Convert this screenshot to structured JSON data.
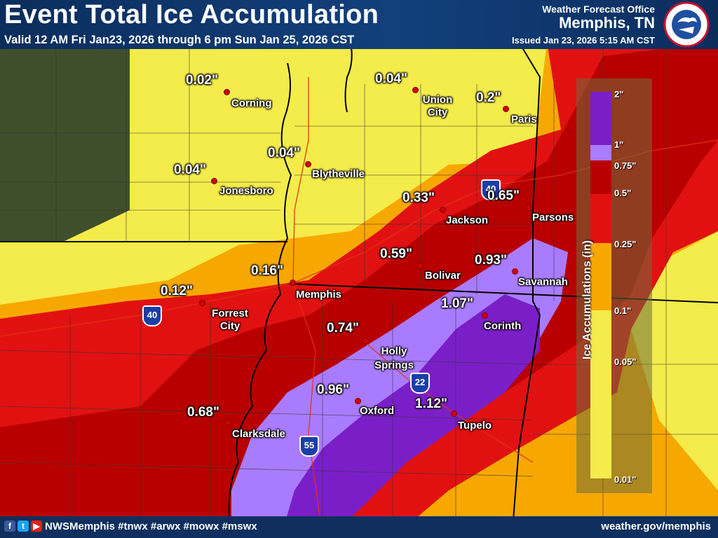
{
  "header": {
    "title": "Event Total Ice Accumulation",
    "valid": "Valid 12 AM Fri Jan23, 2026 through 6 pm Sun Jan 25, 2026 CST",
    "wfo": "Weather Forecast Office",
    "office": "Memphis, TN",
    "issued": "Issued Jan 23, 2026 5:15 AM CST",
    "logo_text": "NATIONAL WEATHER SERVICE"
  },
  "legend": {
    "title": "Ice Accumulations (in)",
    "ticks": [
      "2\"",
      "1\"",
      "0.75\"",
      "0.5\"",
      "0.25\"",
      "0.1\"",
      "0.05\"",
      "0.01\""
    ],
    "colors": [
      "#7a1fc8",
      "#a97cff",
      "#b80000",
      "#e11111",
      "#f7a800",
      "#f4ec4a"
    ]
  },
  "points": [
    {
      "value": "0.02\"",
      "city": "Corning"
    },
    {
      "value": "0.04\"",
      "city": "Union City"
    },
    {
      "value": "0.2\"",
      "city": "Paris"
    },
    {
      "value": "0.04\"",
      "city": "Blytheville"
    },
    {
      "value": "0.04\"",
      "city": "Jonesboro"
    },
    {
      "value": "0.33\"",
      "city": "Jackson"
    },
    {
      "value": "0.65\"",
      "city": "Parsons"
    },
    {
      "value": "0.59\"",
      "city": "Bolivar"
    },
    {
      "value": "0.93\"",
      "city": "Savannah"
    },
    {
      "value": "0.16\"",
      "city": "Memphis"
    },
    {
      "value": "0.12\"",
      "city": "Forrest City"
    },
    {
      "value": "1.07\"",
      "city": "Corinth"
    },
    {
      "value": "0.74\"",
      "city": "Holly Springs"
    },
    {
      "value": "0.96\"",
      "city": "Oxford"
    },
    {
      "value": "1.12\"",
      "city": "Tupelo"
    },
    {
      "value": "0.68\"",
      "city": "Clarksdale"
    }
  ],
  "shields": [
    {
      "route": "40"
    },
    {
      "route": "40"
    },
    {
      "route": "22"
    },
    {
      "route": "55"
    }
  ],
  "footer": {
    "social_icons": [
      "facebook-icon",
      "twitter-icon",
      "youtube-icon"
    ],
    "handle": "NWSMemphis #tnwx #arwx #mowx #mswx",
    "site": "weather.gov/memphis"
  }
}
